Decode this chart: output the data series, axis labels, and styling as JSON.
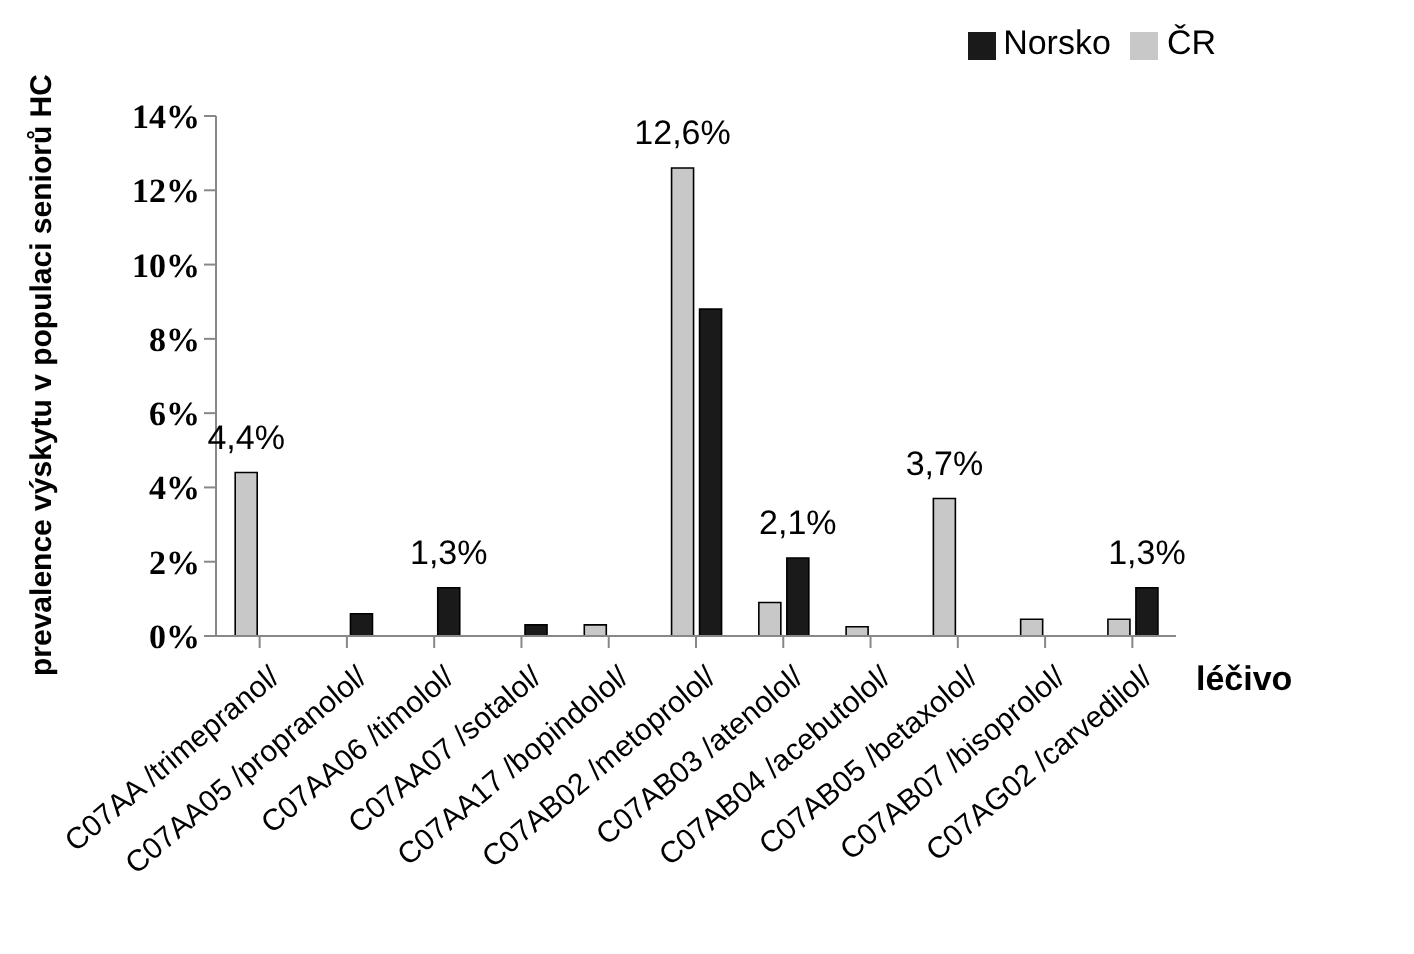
{
  "chart_data": {
    "type": "bar",
    "ylabel": "prevalence výskytu v populaci seniorů HC",
    "xlabel": "léčivo",
    "categories": [
      "C07AA /trimepranol/",
      "C07AA05 /propranolol/",
      "C07AA06 /timolol/",
      "C07AA07 /sotalol/",
      "C07AA17 /bopindolol/",
      "C07AB02 /metoprolol/",
      "C07AB03 /atenolol/",
      "C07AB04 /acebutolol/",
      "C07AB05 /betaxolol/",
      "C07AB07 /bisoprolol/",
      "C07AG02 /carvedilol/"
    ],
    "series": [
      {
        "name": "ČR",
        "color": "#c8c8c8",
        "values": [
          4.4,
          0,
          0,
          0,
          0.3,
          12.6,
          0.9,
          0.25,
          3.7,
          0.45,
          0.45
        ],
        "value_labels": [
          "4,4%",
          null,
          null,
          null,
          null,
          "12,6%",
          null,
          null,
          "3,7%",
          null,
          null
        ]
      },
      {
        "name": "Norsko",
        "color": "#1a1a1a",
        "values": [
          0,
          0.6,
          1.3,
          0.3,
          0,
          8.8,
          2.1,
          0,
          0,
          0,
          1.3
        ],
        "value_labels": [
          null,
          null,
          "1,3%",
          null,
          null,
          null,
          "2,1%",
          null,
          null,
          null,
          "1,3%"
        ]
      }
    ],
    "ylim": [
      0,
      14
    ],
    "yticks": [
      {
        "value": 0,
        "label": "0%"
      },
      {
        "value": 2,
        "label": "2%"
      },
      {
        "value": 4,
        "label": "4%"
      },
      {
        "value": 6,
        "label": "6%"
      },
      {
        "value": 8,
        "label": "8%"
      },
      {
        "value": 10,
        "label": "10%"
      },
      {
        "value": 12,
        "label": "12%"
      },
      {
        "value": 14,
        "label": "14%"
      }
    ],
    "grid": false,
    "legend": "top right"
  }
}
